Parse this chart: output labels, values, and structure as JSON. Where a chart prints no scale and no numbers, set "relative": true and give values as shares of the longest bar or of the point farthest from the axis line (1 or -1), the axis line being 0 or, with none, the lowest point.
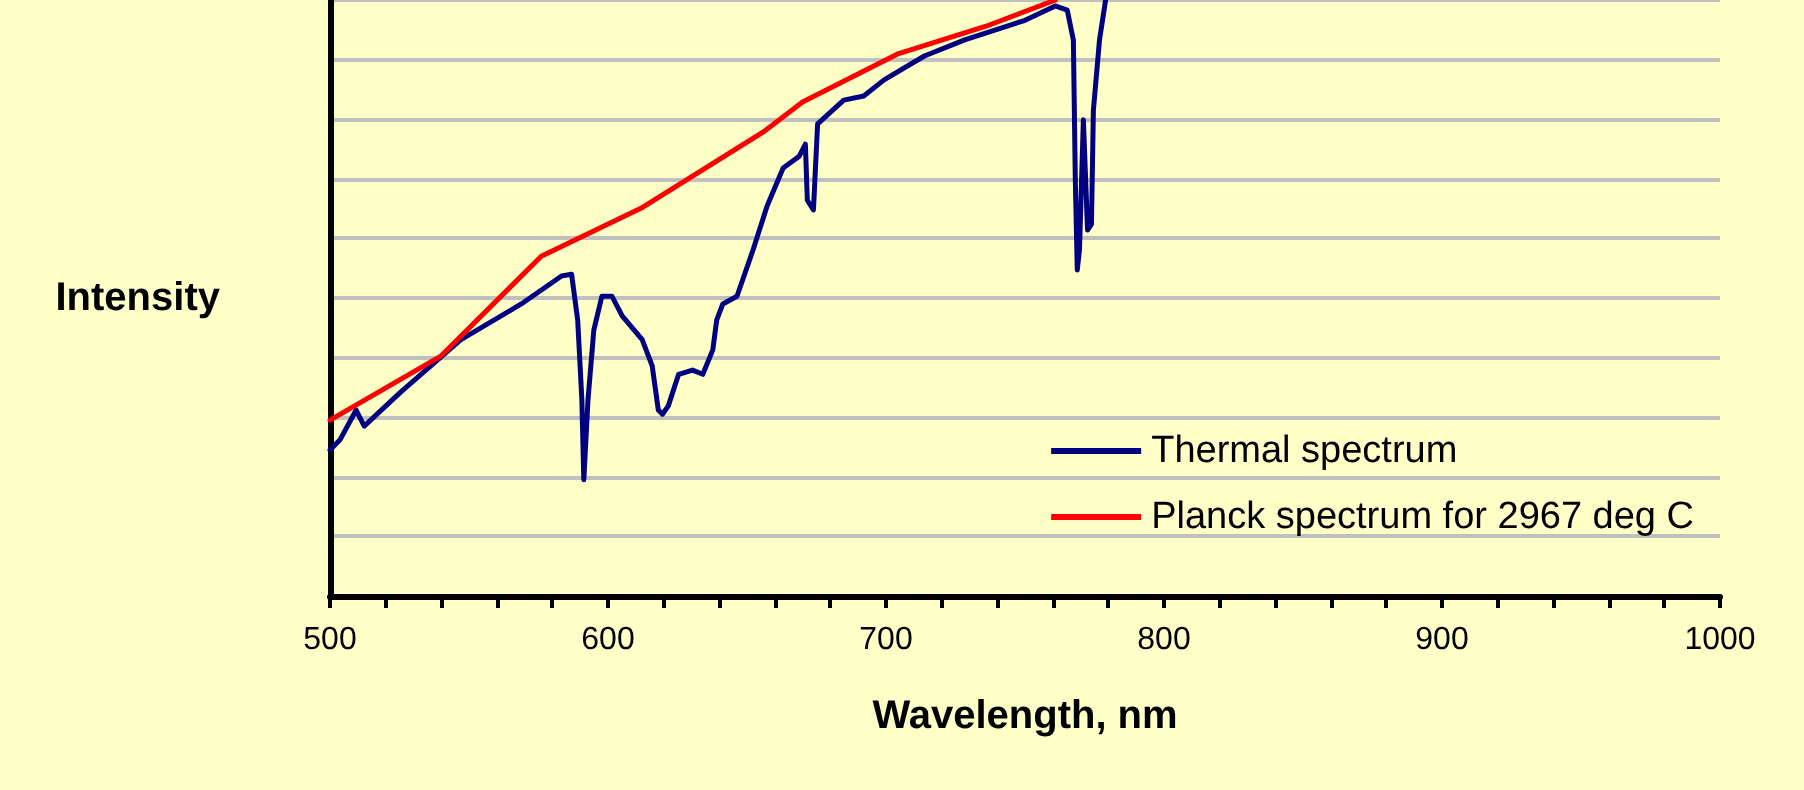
{
  "chart_data": {
    "type": "line",
    "xlabel": "Wavelength, nm",
    "ylabel": "Intensity",
    "relative": true,
    "grid": "y",
    "legend": "bottom right",
    "marker": "none",
    "line_style": "solid",
    "xlim": [
      500,
      1000
    ],
    "xticks": [
      500,
      {
        "value": 520,
        "label": null
      },
      {
        "value": 540,
        "label": null
      },
      {
        "value": 560,
        "label": null
      },
      {
        "value": 580,
        "label": null
      },
      600,
      {
        "value": 620,
        "label": null
      },
      {
        "value": 640,
        "label": null
      },
      {
        "value": 660,
        "label": null
      },
      {
        "value": 680,
        "label": null
      },
      700,
      {
        "value": 720,
        "label": null
      },
      {
        "value": 740,
        "label": null
      },
      {
        "value": 760,
        "label": null
      },
      {
        "value": 780,
        "label": null
      },
      800,
      {
        "value": 820,
        "label": null
      },
      {
        "value": 840,
        "label": null
      },
      {
        "value": 860,
        "label": null
      },
      {
        "value": 880,
        "label": null
      },
      900,
      {
        "value": 920,
        "label": null
      },
      {
        "value": 940,
        "label": null
      },
      {
        "value": 960,
        "label": null
      },
      {
        "value": 980,
        "label": null
      },
      1000
    ],
    "series": [
      {
        "name": "Thermal spectrum",
        "color": "#000080",
        "x": [
          500,
          503.6,
          509.4,
          512.3,
          525.4,
          547.1,
          568.8,
          583.3,
          586.9,
          589.1,
          590.6,
          591.3,
          592.8,
          594.9,
          597.8,
          601.4,
          605.1,
          612.3,
          615.9,
          618.1,
          619.6,
          621.7,
          625.4,
          630.4,
          634.1,
          637.7,
          639.1,
          641.3,
          646.4,
          652.2,
          657.2,
          663.0,
          668.8,
          671.0,
          671.7,
          673.9,
          675.4,
          684.8,
          692.0,
          699.3,
          713.8,
          728.3,
          750.0,
          760.9,
          765.2,
          767.4,
          768.1,
          768.8,
          769.6,
          771.0,
          772.5,
          773.9,
          774.6,
          776.8,
          779.0
        ],
        "values": [
          0.245,
          0.262,
          0.312,
          0.285,
          0.342,
          0.43,
          0.49,
          0.537,
          0.54,
          0.463,
          0.329,
          0.195,
          0.329,
          0.446,
          0.503,
          0.503,
          0.47,
          0.43,
          0.386,
          0.312,
          0.305,
          0.319,
          0.372,
          0.379,
          0.372,
          0.413,
          0.463,
          0.49,
          0.503,
          0.581,
          0.654,
          0.718,
          0.738,
          0.758,
          0.664,
          0.648,
          0.792,
          0.832,
          0.839,
          0.866,
          0.906,
          0.933,
          0.966,
          0.99,
          0.983,
          0.933,
          0.698,
          0.547,
          0.581,
          0.799,
          0.614,
          0.624,
          0.815,
          0.933,
          1.0
        ]
      },
      {
        "name": "Planck spectrum for 2967 deg C",
        "color": "#ff0000",
        "x": [
          500,
          540,
          576,
          612,
          656,
          670,
          704,
          736,
          761
        ],
        "values": [
          0.295,
          0.403,
          0.57,
          0.651,
          0.779,
          0.829,
          0.909,
          0.956,
          1.0
        ]
      }
    ]
  }
}
